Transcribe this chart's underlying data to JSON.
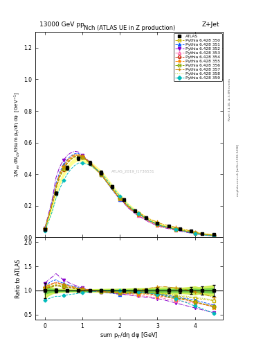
{
  "title_top": "13000 GeV pp",
  "title_right": "Z+Jet",
  "plot_title": "Nch (ATLAS UE in Z production)",
  "ylabel_main": "1/N$_{ev}$ dN$_{ch}$/dsum p$_T$/dη dφ  [GeV$^{-1}$]",
  "ylabel_ratio": "Ratio to ATLAS",
  "xlabel": "sum p$_T$/dη dφ [GeV]",
  "watermark": "ATLAS_2019_I1736531",
  "rivet_text": "Rivet 3.1.10, ≥ 3.3M events",
  "mcplots_text": "mcplots.cern.ch [arXiv:1306.3436]",
  "xlim": [
    -0.25,
    4.75
  ],
  "ylim_main": [
    0.0,
    1.3
  ],
  "ylim_ratio": [
    0.4,
    2.1
  ],
  "x_data": [
    0.0,
    0.1,
    0.2,
    0.3,
    0.4,
    0.5,
    0.6,
    0.7,
    0.8,
    0.9,
    1.0,
    1.1,
    1.2,
    1.3,
    1.4,
    1.5,
    1.6,
    1.7,
    1.8,
    1.9,
    2.0,
    2.1,
    2.2,
    2.3,
    2.4,
    2.5,
    2.6,
    2.7,
    2.8,
    2.9,
    3.0,
    3.1,
    3.2,
    3.3,
    3.4,
    3.5,
    3.6,
    3.7,
    3.8,
    3.9,
    4.0,
    4.1,
    4.2,
    4.3,
    4.4,
    4.5
  ],
  "atlas_y": [
    0.05,
    0.12,
    0.19,
    0.28,
    0.35,
    0.4,
    0.44,
    0.47,
    0.49,
    0.5,
    0.495,
    0.485,
    0.47,
    0.45,
    0.43,
    0.41,
    0.38,
    0.35,
    0.32,
    0.29,
    0.26,
    0.24,
    0.21,
    0.19,
    0.17,
    0.155,
    0.14,
    0.125,
    0.11,
    0.1,
    0.09,
    0.08,
    0.075,
    0.07,
    0.065,
    0.06,
    0.055,
    0.05,
    0.045,
    0.04,
    0.035,
    0.03,
    0.025,
    0.022,
    0.02,
    0.018
  ],
  "atlas_err": [
    0.008,
    0.012,
    0.012,
    0.012,
    0.012,
    0.012,
    0.012,
    0.012,
    0.012,
    0.012,
    0.012,
    0.012,
    0.012,
    0.012,
    0.012,
    0.012,
    0.012,
    0.012,
    0.01,
    0.01,
    0.01,
    0.008,
    0.008,
    0.008,
    0.008,
    0.007,
    0.007,
    0.006,
    0.006,
    0.006,
    0.005,
    0.005,
    0.005,
    0.004,
    0.004,
    0.004,
    0.003,
    0.003,
    0.003,
    0.003,
    0.003,
    0.002,
    0.002,
    0.002,
    0.002,
    0.002
  ],
  "series": [
    {
      "label": "Pythia 6.428 350",
      "color": "#c8b400",
      "linestyle": "--",
      "marker": "s",
      "markerfilled": false
    },
    {
      "label": "Pythia 6.428 351",
      "color": "#0055ff",
      "linestyle": "--",
      "marker": "^",
      "markerfilled": true
    },
    {
      "label": "Pythia 6.428 352",
      "color": "#8800cc",
      "linestyle": "-.",
      "marker": "v",
      "markerfilled": true
    },
    {
      "label": "Pythia 6.428 353",
      "color": "#ff66aa",
      "linestyle": "--",
      "marker": "^",
      "markerfilled": false
    },
    {
      "label": "Pythia 6.428 354",
      "color": "#cc2200",
      "linestyle": "--",
      "marker": "o",
      "markerfilled": false
    },
    {
      "label": "Pythia 6.428 355",
      "color": "#ff8800",
      "linestyle": "--",
      "marker": "*",
      "markerfilled": true
    },
    {
      "label": "Pythia 6.428 356",
      "color": "#88aa00",
      "linestyle": "--",
      "marker": "s",
      "markerfilled": false
    },
    {
      "label": "Pythia 6.428 357",
      "color": "#cc8800",
      "linestyle": "-.",
      "marker": "+",
      "markerfilled": true
    },
    {
      "label": "Pythia 6.428 358",
      "color": "#aacc00",
      "linestyle": ":",
      "marker": null,
      "markerfilled": false
    },
    {
      "label": "Pythia 6.428 359",
      "color": "#00bbbb",
      "linestyle": "--",
      "marker": "D",
      "markerfilled": true
    }
  ],
  "series_scale": [
    [
      1.05,
      1.08,
      1.1,
      1.12,
      1.1,
      1.08,
      1.07,
      1.06,
      1.05,
      1.04,
      1.03,
      1.02,
      1.01,
      1.0,
      0.99,
      0.98,
      0.97,
      0.96,
      0.95,
      0.94,
      0.93,
      0.93,
      0.94,
      0.95,
      0.96,
      0.97,
      0.98,
      0.97,
      0.96,
      0.95,
      0.95,
      0.95,
      0.93,
      0.91,
      0.9,
      0.89,
      0.88,
      0.87,
      0.86,
      0.85,
      0.84,
      0.83,
      0.82,
      0.81,
      0.8,
      0.79
    ],
    [
      1.1,
      1.15,
      1.2,
      1.22,
      1.18,
      1.15,
      1.12,
      1.1,
      1.08,
      1.06,
      1.04,
      1.02,
      1.0,
      0.99,
      0.98,
      0.97,
      0.96,
      0.95,
      0.94,
      0.93,
      0.92,
      0.92,
      0.93,
      0.94,
      0.95,
      0.96,
      0.97,
      0.96,
      0.95,
      0.94,
      0.93,
      0.92,
      0.91,
      0.9,
      0.88,
      0.87,
      0.85,
      0.84,
      0.83,
      0.82,
      0.8,
      0.78,
      0.76,
      0.74,
      0.72,
      0.7
    ],
    [
      1.15,
      1.22,
      1.28,
      1.35,
      1.28,
      1.22,
      1.18,
      1.14,
      1.11,
      1.08,
      1.05,
      1.03,
      1.01,
      1.0,
      0.99,
      0.98,
      0.97,
      0.96,
      0.95,
      0.94,
      0.93,
      0.92,
      0.91,
      0.9,
      0.89,
      0.88,
      0.87,
      0.86,
      0.85,
      0.84,
      0.83,
      0.82,
      0.8,
      0.78,
      0.76,
      0.74,
      0.72,
      0.7,
      0.68,
      0.66,
      0.64,
      0.62,
      0.6,
      0.58,
      0.56,
      0.54
    ],
    [
      1.08,
      1.12,
      1.15,
      1.17,
      1.15,
      1.12,
      1.1,
      1.08,
      1.06,
      1.04,
      1.02,
      1.01,
      1.0,
      0.99,
      0.98,
      0.97,
      0.97,
      0.96,
      0.95,
      0.94,
      0.94,
      0.93,
      0.92,
      0.91,
      0.9,
      0.9,
      0.89,
      0.88,
      0.87,
      0.86,
      0.85,
      0.85,
      0.83,
      0.81,
      0.8,
      0.79,
      0.78,
      0.77,
      0.76,
      0.75,
      0.74,
      0.73,
      0.72,
      0.71,
      0.7,
      0.69
    ],
    [
      1.03,
      1.06,
      1.08,
      1.1,
      1.09,
      1.07,
      1.06,
      1.05,
      1.04,
      1.03,
      1.02,
      1.01,
      1.0,
      0.99,
      0.98,
      0.97,
      0.97,
      0.96,
      0.95,
      0.95,
      0.95,
      0.95,
      0.95,
      0.95,
      0.95,
      0.95,
      0.95,
      0.94,
      0.93,
      0.92,
      0.91,
      0.9,
      0.88,
      0.86,
      0.85,
      0.84,
      0.83,
      0.82,
      0.8,
      0.78,
      0.76,
      0.74,
      0.72,
      0.7,
      0.68,
      0.66
    ],
    [
      1.06,
      1.1,
      1.13,
      1.15,
      1.13,
      1.11,
      1.09,
      1.07,
      1.06,
      1.04,
      1.03,
      1.02,
      1.01,
      1.0,
      0.99,
      0.98,
      0.97,
      0.96,
      0.96,
      0.95,
      0.95,
      0.94,
      0.94,
      0.93,
      0.93,
      0.93,
      0.93,
      0.92,
      0.91,
      0.9,
      0.89,
      0.88,
      0.87,
      0.85,
      0.84,
      0.83,
      0.82,
      0.81,
      0.8,
      0.78,
      0.76,
      0.74,
      0.72,
      0.7,
      0.68,
      0.66
    ],
    [
      1.04,
      1.07,
      1.09,
      1.11,
      1.1,
      1.08,
      1.07,
      1.05,
      1.04,
      1.03,
      1.02,
      1.01,
      1.0,
      0.99,
      0.98,
      0.97,
      0.96,
      0.96,
      0.95,
      0.95,
      0.95,
      0.95,
      0.95,
      0.96,
      0.97,
      0.97,
      0.97,
      0.96,
      0.95,
      0.94,
      0.93,
      0.92,
      0.9,
      0.88,
      0.87,
      0.85,
      0.84,
      0.83,
      0.81,
      0.79,
      0.77,
      0.75,
      0.73,
      0.71,
      0.69,
      0.67
    ],
    [
      1.07,
      1.11,
      1.14,
      1.17,
      1.15,
      1.13,
      1.11,
      1.09,
      1.07,
      1.05,
      1.04,
      1.02,
      1.01,
      1.0,
      0.99,
      0.98,
      0.97,
      0.97,
      0.97,
      0.97,
      0.97,
      0.97,
      0.97,
      0.97,
      0.97,
      1.0,
      1.02,
      1.03,
      1.05,
      1.06,
      1.07,
      1.08,
      1.08,
      1.07,
      1.06,
      1.05,
      1.04,
      1.03,
      1.01,
      0.99,
      0.97,
      0.95,
      0.93,
      0.91,
      0.88,
      0.85
    ],
    [
      1.02,
      1.05,
      1.07,
      1.09,
      1.08,
      1.07,
      1.06,
      1.05,
      1.04,
      1.03,
      1.02,
      1.01,
      1.0,
      0.99,
      0.98,
      0.97,
      0.96,
      0.96,
      0.95,
      0.95,
      0.95,
      0.95,
      0.95,
      0.95,
      0.95,
      0.95,
      0.95,
      0.95,
      0.95,
      0.95,
      0.95,
      0.95,
      0.94,
      0.93,
      0.92,
      0.91,
      0.9,
      0.89,
      0.88,
      0.87,
      0.86,
      0.85,
      0.84,
      0.83,
      0.82,
      0.81
    ],
    [
      0.8,
      0.83,
      0.86,
      0.88,
      0.88,
      0.9,
      0.91,
      0.92,
      0.93,
      0.94,
      0.95,
      0.96,
      0.97,
      0.98,
      0.99,
      1.0,
      1.0,
      1.0,
      1.0,
      1.0,
      1.0,
      1.0,
      1.0,
      0.99,
      0.98,
      0.97,
      0.96,
      0.95,
      0.94,
      0.93,
      0.92,
      0.91,
      0.89,
      0.87,
      0.85,
      0.83,
      0.8,
      0.77,
      0.74,
      0.71,
      0.68,
      0.65,
      0.62,
      0.59,
      0.56,
      0.53
    ]
  ],
  "yticks_main": [
    0.0,
    0.2,
    0.4,
    0.6,
    0.8,
    1.0,
    1.2
  ],
  "yticks_ratio": [
    0.5,
    1.0,
    1.5,
    2.0
  ],
  "xticks": [
    0,
    1,
    2,
    3,
    4
  ]
}
